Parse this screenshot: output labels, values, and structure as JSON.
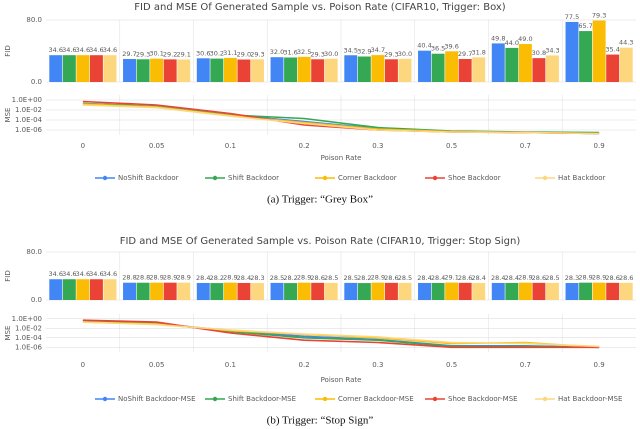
{
  "chart_data": [
    {
      "type": "combo",
      "title": "FID and MSE Of Generated Sample vs. Poison Rate (CIFAR10, Trigger: Box)",
      "categories": [
        "0",
        "0.05",
        "0.1",
        "0.2",
        "0.3",
        "0.5",
        "0.7",
        "0.9"
      ],
      "x_label": "Poison Rate",
      "caption": "(a) Trigger: “Grey Box”",
      "grid": true,
      "panels": [
        {
          "type": "bar",
          "y_label": "FID",
          "ylim": [
            0,
            80
          ],
          "yticks": [
            {
              "value": 0,
              "label": "0.0"
            },
            {
              "value": 80,
              "label": "80.0"
            }
          ],
          "series": [
            {
              "color": "#4285f4",
              "values": [
                34.6,
                29.7,
                30.6,
                32.0,
                34.5,
                40.4,
                49.8,
                77.5
              ],
              "value_labels": [
                "34.6",
                "29.7",
                "30.6",
                "32.0",
                "34.5",
                "40.4",
                "49.8",
                "77.5"
              ]
            },
            {
              "color": "#34a853",
              "values": [
                34.6,
                29.3,
                30.2,
                31.6,
                32.9,
                36.5,
                44.0,
                65.7
              ],
              "value_labels": [
                "34.6",
                "29.3",
                "30.2",
                "31.6",
                "32.9",
                "36.5",
                "44.0",
                "65.7"
              ]
            },
            {
              "color": "#fbbc04",
              "values": [
                34.6,
                30.1,
                31.1,
                32.5,
                34.7,
                39.6,
                49.0,
                79.3
              ],
              "value_labels": [
                "34.6",
                "30.1",
                "31.1",
                "32.5",
                "34.7",
                "39.6",
                "49.0",
                "79.3"
              ]
            },
            {
              "color": "#ea4335",
              "values": [
                34.6,
                29.2,
                29.0,
                29.3,
                29.3,
                29.7,
                30.8,
                35.4
              ],
              "value_labels": [
                "34.6",
                "29.2",
                "29.0",
                "29.3",
                "29.3",
                "29.7",
                "30.8",
                "35.4"
              ]
            },
            {
              "color": "#fdd77e",
              "values": [
                34.6,
                29.1,
                29.3,
                30.0,
                30.0,
                31.8,
                34.3,
                44.3
              ],
              "value_labels": [
                "34.6",
                "29.1",
                "29.3",
                "30.0",
                "30.0",
                "31.8",
                "34.3",
                "44.3"
              ]
            }
          ]
        },
        {
          "type": "line",
          "y_label": "MSE",
          "log_scale": true,
          "ylim": [
            1e-07,
            10
          ],
          "yticks": [
            {
              "value": 1,
              "label": "1.0E+00"
            },
            {
              "value": 0.01,
              "label": "1.0E-02"
            },
            {
              "value": 0.0001,
              "label": "1.0E-04"
            },
            {
              "value": 1e-06,
              "label": "1.0E-06"
            }
          ],
          "series": [
            {
              "name": "NoShift Backdoor",
              "color": "#4285f4",
              "values": [
                0.2,
                0.05,
                0.001,
                5e-05,
                2e-06,
                5e-07,
                3e-07,
                2e-07
              ]
            },
            {
              "name": "Shift Backdoor",
              "color": "#34a853",
              "values": [
                0.2,
                0.05,
                0.001,
                0.0002,
                3e-06,
                6e-07,
                4e-07,
                3e-07
              ]
            },
            {
              "name": "Corner Backdoor",
              "color": "#fbbc04",
              "values": [
                0.15,
                0.04,
                0.0008,
                3e-05,
                1.5e-06,
                5e-07,
                3e-07,
                2e-07
              ]
            },
            {
              "name": "Shoe Backdoor",
              "color": "#ea4335",
              "values": [
                0.5,
                0.1,
                0.002,
                1e-05,
                1e-06,
                4e-07,
                3e-07,
                2e-07
              ]
            },
            {
              "name": "Hat Backdoor",
              "color": "#fdd77e",
              "values": [
                0.1,
                0.03,
                0.0006,
                2e-05,
                1e-06,
                4e-07,
                3e-07,
                2e-07
              ]
            }
          ]
        }
      ]
    },
    {
      "type": "combo",
      "title": "FID and MSE Of Generated Sample vs. Poison Rate (CIFAR10, Trigger: Stop Sign)",
      "categories": [
        "0",
        "0.05",
        "0.1",
        "0.2",
        "0.3",
        "0.5",
        "0.7",
        "0.9"
      ],
      "x_label": "Poison Rate",
      "caption": "(b) Trigger: “Stop Sign”",
      "grid": true,
      "panels": [
        {
          "type": "bar",
          "y_label": "FID",
          "ylim": [
            0,
            80
          ],
          "yticks": [
            {
              "value": 0,
              "label": "0.0"
            },
            {
              "value": 80,
              "label": "80.0"
            }
          ],
          "series": [
            {
              "color": "#4285f4",
              "values": [
                34.6,
                28.8,
                28.4,
                28.5,
                28.5,
                28.4,
                28.4,
                28.3
              ]
            },
            {
              "color": "#34a853",
              "values": [
                34.6,
                28.8,
                28.2,
                28.2,
                28.2,
                28.4,
                28.4,
                28.9
              ]
            },
            {
              "color": "#fbbc04",
              "values": [
                34.6,
                28.9,
                28.9,
                28.9,
                28.9,
                29.1,
                28.9,
                28.9
              ]
            },
            {
              "color": "#ea4335",
              "values": [
                34.6,
                28.9,
                28.4,
                28.6,
                28.6,
                28.6,
                28.6,
                28.6
              ]
            },
            {
              "color": "#fdd77e",
              "values": [
                34.6,
                28.9,
                28.3,
                28.5,
                28.5,
                28.4,
                28.5,
                28.6
              ]
            }
          ]
        },
        {
          "type": "line",
          "y_label": "MSE",
          "log_scale": true,
          "ylim": [
            1e-07,
            10
          ],
          "yticks": [
            {
              "value": 1,
              "label": "1.0E+00"
            },
            {
              "value": 0.01,
              "label": "1.0E-02"
            },
            {
              "value": 0.0001,
              "label": "1.0E-04"
            },
            {
              "value": 1e-06,
              "label": "1.0E-06"
            }
          ],
          "series": [
            {
              "name": "NoShift Backdoor-MSE",
              "color": "#4285f4",
              "values": [
                0.3,
                0.1,
                0.003,
                0.0002,
                4e-05,
                2e-06,
                2e-06,
                1e-06
              ]
            },
            {
              "name": "Shift Backdoor-MSE",
              "color": "#34a853",
              "values": [
                0.3,
                0.1,
                0.002,
                0.0001,
                3e-05,
                1.5e-06,
                1.5e-06,
                1e-06
              ]
            },
            {
              "name": "Corner Backdoor-MSE",
              "color": "#fbbc04",
              "values": [
                0.2,
                0.08,
                0.003,
                0.0005,
                0.0001,
                6e-06,
                1e-05,
                1e-06
              ]
            },
            {
              "name": "Shoe Backdoor-MSE",
              "color": "#ea4335",
              "values": [
                0.5,
                0.2,
                0.001,
                3e-05,
                1e-05,
                1e-06,
                1e-06,
                1e-06
              ]
            },
            {
              "name": "Hat Backdoor-MSE",
              "color": "#fdd77e",
              "values": [
                0.2,
                0.06,
                0.004,
                0.0006,
                0.00015,
                1e-05,
                6e-06,
                1.5e-06
              ]
            }
          ]
        }
      ]
    }
  ]
}
